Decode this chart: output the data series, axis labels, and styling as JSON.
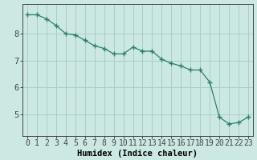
{
  "x": [
    0,
    1,
    2,
    3,
    4,
    5,
    6,
    7,
    8,
    9,
    10,
    11,
    12,
    13,
    14,
    15,
    16,
    17,
    18,
    19,
    20,
    21,
    22,
    23
  ],
  "y": [
    8.7,
    8.7,
    8.55,
    8.3,
    8.0,
    7.95,
    7.75,
    7.55,
    7.45,
    7.25,
    7.25,
    7.5,
    7.35,
    7.35,
    7.05,
    6.9,
    6.8,
    6.65,
    6.65,
    6.2,
    4.9,
    4.65,
    4.7,
    4.9
  ],
  "line_color": "#2e7d6e",
  "marker": "+",
  "bg_color": "#cce8e2",
  "grid_color": "#aacccc",
  "axis_color": "#444444",
  "xlabel": "Humidex (Indice chaleur)",
  "yticks": [
    5,
    6,
    7,
    8
  ],
  "xlim": [
    -0.5,
    23.5
  ],
  "ylim": [
    4.2,
    9.1
  ],
  "xlabel_fontsize": 7.5,
  "tick_fontsize": 7
}
